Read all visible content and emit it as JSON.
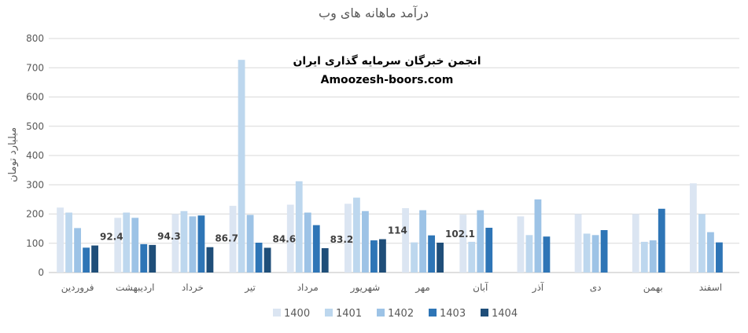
{
  "chart_data": {
    "type": "bar",
    "title": "درآمد ماهانه های وب",
    "ylabel": "میلیارد تومان",
    "xlabel": "",
    "ylim": [
      0,
      800
    ],
    "yticks": [
      0,
      100,
      200,
      300,
      400,
      500,
      600,
      700,
      800
    ],
    "grid": true,
    "legend_position": "bottom",
    "categories": [
      "فروردین",
      "اردیبهشت",
      "خرداد",
      "تیر",
      "مرداد",
      "شهریور",
      "مهر",
      "آبان",
      "آذر",
      "دی",
      "بهمن",
      "اسفند"
    ],
    "series": [
      {
        "name": "1400",
        "color": "#dbe5f2",
        "values": [
          222,
          187,
          200,
          228,
          232,
          235,
          220,
          198,
          192,
          200,
          200,
          305
        ]
      },
      {
        "name": "1401",
        "color": "#bdd7ee",
        "values": [
          205,
          205,
          210,
          727,
          312,
          256,
          103,
          105,
          128,
          133,
          105,
          200
        ]
      },
      {
        "name": "1402",
        "color": "#9dc3e6",
        "values": [
          152,
          187,
          192,
          197,
          205,
          210,
          213,
          213,
          250,
          128,
          110,
          138
        ]
      },
      {
        "name": "1403",
        "color": "#2e75b6",
        "values": [
          85,
          97,
          195,
          102,
          162,
          110,
          127,
          153,
          123,
          145,
          218,
          103
        ]
      },
      {
        "name": "1404",
        "color": "#1f4e79",
        "values": [
          92.4,
          94.3,
          86.7,
          84.6,
          83.2,
          114,
          102.1,
          null,
          null,
          null,
          null,
          null
        ]
      }
    ],
    "data_labels": {
      "series": "1404",
      "values": [
        "92.4",
        "94.3",
        "86.7",
        "84.6",
        "83.2",
        "114",
        "102.1"
      ]
    }
  },
  "watermark": {
    "line1": "انجمن خبرگان سرمایه گذاری ایران",
    "line2": "Amoozesh-boors.com"
  }
}
